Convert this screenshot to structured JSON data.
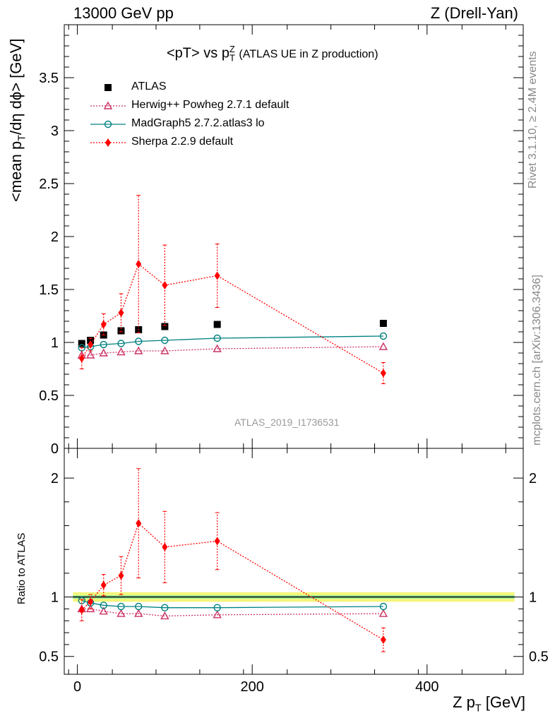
{
  "header": {
    "left": "13000 GeV pp",
    "right": "Z (Drell-Yan)"
  },
  "side_labels": {
    "rivet": "Rivet 3.1.10, ≥ 2.4M events",
    "mcplots": "mcplots.cern.ch [arXiv:1306.3436]"
  },
  "watermark": "ATLAS_2019_I1736531",
  "title": {
    "main": "<pT> vs p",
    "sub": "T",
    "sup": "Z",
    "extra": "(ATLAS UE in Z production)"
  },
  "axes": {
    "ylabel_top": "<mean p",
    "ylabel_top_sub": "T",
    "ylabel_top_rest": "/dη dϕ> [GeV]",
    "ylabel_bottom": "Ratio to ATLAS",
    "xlabel": "Z p",
    "xlabel_sub": "T",
    "xlabel_rest": " [GeV]"
  },
  "legend": [
    {
      "label": "ATLAS",
      "color": "#000000",
      "marker": "square"
    },
    {
      "label": "Herwig++ Powheg 2.7.1 default",
      "color": "#cc3366",
      "marker": "triangle-open"
    },
    {
      "label": "MadGraph5 2.7.2.atlas3 lo",
      "color": "#008080",
      "marker": "circle-open"
    },
    {
      "label": "Sherpa 2.2.9 default",
      "color": "#ff0000",
      "marker": "diamond"
    }
  ],
  "chart_data": [
    {
      "type": "scatter",
      "panel": "main",
      "xlim": [
        -15,
        510
      ],
      "ylim": [
        0,
        4.0
      ],
      "yticks": [
        "0",
        "0.5",
        "1",
        "1.5",
        "2",
        "2.5",
        "3",
        "3.5"
      ],
      "ytick_values": [
        0,
        0.5,
        1,
        1.5,
        2,
        2.5,
        3,
        3.5
      ],
      "xticks": [
        "0",
        "200",
        "400"
      ],
      "xtick_values": [
        0,
        200,
        400
      ],
      "series": [
        {
          "name": "ATLAS",
          "x": [
            5,
            15,
            30,
            50,
            70,
            100,
            160,
            350
          ],
          "y": [
            0.99,
            1.02,
            1.07,
            1.11,
            1.12,
            1.15,
            1.17,
            1.18
          ]
        },
        {
          "name": "Herwig++ Powheg 2.7.1 default",
          "x": [
            5,
            15,
            30,
            50,
            70,
            100,
            160,
            350
          ],
          "y": [
            0.88,
            0.88,
            0.9,
            0.91,
            0.92,
            0.92,
            0.94,
            0.96
          ]
        },
        {
          "name": "MadGraph5 2.7.2.atlas3 lo",
          "x": [
            5,
            15,
            30,
            50,
            70,
            100,
            160,
            350
          ],
          "y": [
            0.95,
            0.96,
            0.98,
            0.99,
            1.01,
            1.02,
            1.04,
            1.06
          ]
        },
        {
          "name": "Sherpa 2.2.9 default",
          "x": [
            5,
            15,
            30,
            50,
            70,
            100,
            160,
            350
          ],
          "y": [
            0.85,
            0.98,
            1.17,
            1.28,
            1.74,
            1.54,
            1.63,
            0.71
          ],
          "yerr": [
            0.1,
            0.06,
            0.1,
            0.18,
            0.65,
            0.38,
            0.3,
            0.1
          ]
        }
      ]
    },
    {
      "type": "scatter",
      "panel": "ratio",
      "xlim": [
        -15,
        510
      ],
      "ylim": [
        0.35,
        2.25
      ],
      "yticks": [
        "0.5",
        "1",
        "2"
      ],
      "ytick_values": [
        0.5,
        1,
        2
      ],
      "xticks": [
        "0",
        "200",
        "400"
      ],
      "xtick_values": [
        0,
        200,
        400
      ],
      "band": {
        "center": 1.0,
        "inner": 0.015,
        "outer": 0.04
      },
      "series": [
        {
          "name": "Herwig++ Powheg 2.7.1 default",
          "x": [
            5,
            15,
            30,
            50,
            70,
            100,
            160,
            350
          ],
          "y": [
            0.9,
            0.9,
            0.88,
            0.86,
            0.86,
            0.84,
            0.85,
            0.86
          ]
        },
        {
          "name": "MadGraph5 2.7.2.atlas3 lo",
          "x": [
            5,
            15,
            30,
            50,
            70,
            100,
            160,
            350
          ],
          "y": [
            0.97,
            0.95,
            0.93,
            0.92,
            0.92,
            0.91,
            0.91,
            0.92
          ]
        },
        {
          "name": "Sherpa 2.2.9 default",
          "x": [
            5,
            15,
            30,
            50,
            70,
            100,
            160,
            350
          ],
          "y": [
            0.89,
            0.96,
            1.1,
            1.18,
            1.62,
            1.42,
            1.47,
            0.64
          ],
          "yerr": [
            0.09,
            0.06,
            0.09,
            0.16,
            0.46,
            0.3,
            0.24,
            0.1
          ]
        }
      ]
    }
  ]
}
